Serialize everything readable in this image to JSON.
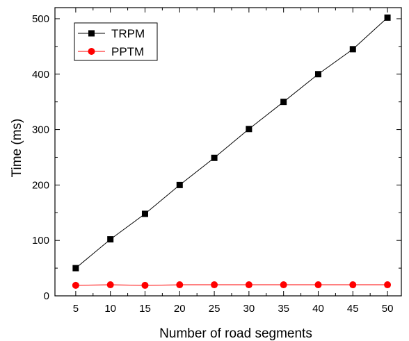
{
  "chart_data": {
    "type": "line",
    "title": "",
    "xlabel": "Number of road segments",
    "ylabel": "Time (ms)",
    "x": [
      5,
      10,
      15,
      20,
      25,
      30,
      35,
      40,
      45,
      50
    ],
    "xlim": [
      2,
      52
    ],
    "ylim": [
      0,
      520
    ],
    "x_ticks": [
      5,
      10,
      15,
      20,
      25,
      30,
      35,
      40,
      45,
      50
    ],
    "y_ticks": [
      0,
      100,
      200,
      300,
      400,
      500
    ],
    "grid": false,
    "legend_position": "top-left",
    "series": [
      {
        "name": "TRPM",
        "color": "#000000",
        "marker": "square",
        "values": [
          50,
          102,
          148,
          200,
          249,
          301,
          350,
          400,
          445,
          502
        ]
      },
      {
        "name": "PPTM",
        "color": "#ff0000",
        "marker": "circle",
        "values": [
          19,
          20,
          19,
          20,
          20,
          20,
          20,
          20,
          20,
          20
        ]
      }
    ]
  }
}
